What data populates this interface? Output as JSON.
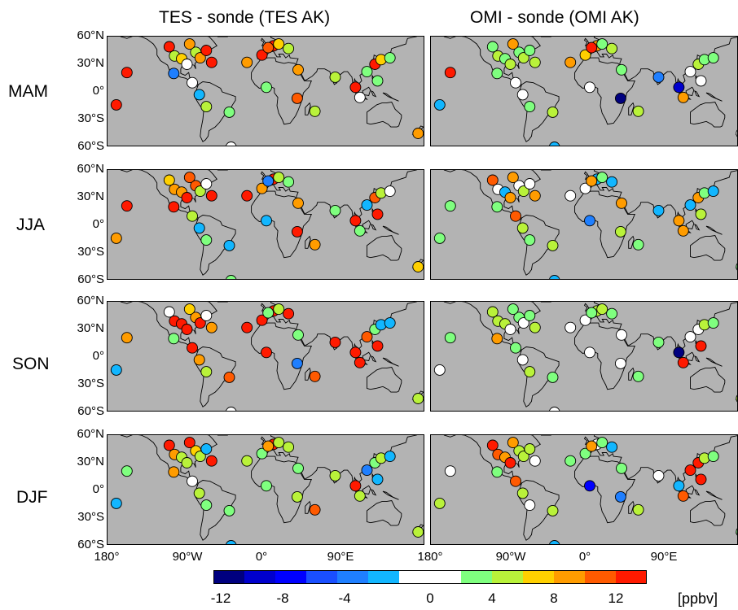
{
  "columns": [
    "TES - sonde (TES AK)",
    "OMI - sonde (OMI AK)"
  ],
  "seasons": [
    "MAM",
    "JJA",
    "SON",
    "DJF"
  ],
  "lat_labels": [
    "60°N",
    "30°N",
    "0°",
    "30°S",
    "60°S"
  ],
  "lon_labels": [
    "180°",
    "90°W",
    "0°",
    "90°E"
  ],
  "colorbar": {
    "colors": [
      "#00007f",
      "#0000cd",
      "#0000ff",
      "#1a4fff",
      "#1f7fff",
      "#12b6ff",
      "#ffffff",
      "#ffffff",
      "#7fff7f",
      "#b9f23a",
      "#ffd000",
      "#ff9c00",
      "#ff5a00",
      "#ff1a00"
    ],
    "tick_labels": [
      "-12",
      "-8",
      "-4",
      "0",
      "4",
      "8",
      "12"
    ],
    "unit": "[ppbv]"
  },
  "land_color": "#b3b3b3",
  "stations": [
    {
      "lon": -158,
      "lat": 21
    },
    {
      "lon": -110,
      "lat": 49
    },
    {
      "lon": -104,
      "lat": 39
    },
    {
      "lon": -96,
      "lat": 36
    },
    {
      "lon": -90,
      "lat": 30
    },
    {
      "lon": -80,
      "lat": 43
    },
    {
      "lon": -75,
      "lat": 37
    },
    {
      "lon": -62,
      "lat": 32
    },
    {
      "lon": -87,
      "lat": 52
    },
    {
      "lon": -68,
      "lat": 45
    },
    {
      "lon": -105,
      "lat": 20
    },
    {
      "lon": -84,
      "lat": 10
    },
    {
      "lon": -76,
      "lat": -3
    },
    {
      "lon": -68,
      "lat": -16
    },
    {
      "lon": -42,
      "lat": -22
    },
    {
      "lon": -22,
      "lat": 32
    },
    {
      "lon": -5,
      "lat": 40
    },
    {
      "lon": 8,
      "lat": 50
    },
    {
      "lon": 14,
      "lat": 52
    },
    {
      "lon": 25,
      "lat": 47
    },
    {
      "lon": 2,
      "lat": 48
    },
    {
      "lon": 0,
      "lat": 5
    },
    {
      "lon": 35,
      "lat": -7
    },
    {
      "lon": 55,
      "lat": -21
    },
    {
      "lon": 36,
      "lat": 24
    },
    {
      "lon": 78,
      "lat": 16
    },
    {
      "lon": 101,
      "lat": 5
    },
    {
      "lon": 114,
      "lat": 22
    },
    {
      "lon": 123,
      "lat": 30
    },
    {
      "lon": 130,
      "lat": 35
    },
    {
      "lon": 140,
      "lat": 37
    },
    {
      "lon": 126,
      "lat": 12
    },
    {
      "lon": 106,
      "lat": -6
    },
    {
      "lon": 172,
      "lat": -45
    },
    {
      "lon": -170,
      "lat": -14
    },
    {
      "lon": -25,
      "lat": 68
    },
    {
      "lon": -50,
      "lat": 70
    },
    {
      "lon": 18,
      "lat": 68
    },
    {
      "lon": -40,
      "lat": -60
    },
    {
      "lon": 150,
      "lat": -80
    }
  ],
  "panel_values": [
    [
      15,
      12,
      4,
      6,
      -1,
      4,
      8,
      12,
      9,
      13,
      -6,
      -1,
      -3,
      4,
      3,
      8,
      13,
      12,
      7,
      4,
      10,
      3,
      10,
      4,
      8,
      4,
      13,
      3,
      13,
      6,
      3,
      3,
      -1,
      8,
      14,
      12,
      12,
      -3,
      -1,
      -6
    ],
    [
      12,
      3,
      4,
      3,
      4,
      3,
      4,
      4,
      9,
      3,
      3,
      -2,
      0,
      3,
      4,
      9,
      7,
      8,
      3,
      4,
      12,
      0,
      -13,
      4,
      3,
      -6,
      -12,
      0,
      4,
      3,
      3,
      0,
      9,
      0,
      -3,
      12,
      4,
      13,
      -3,
      0
    ],
    [
      14,
      7,
      9,
      8,
      13,
      11,
      5,
      12,
      11,
      -2,
      14,
      5,
      -3,
      3,
      -3,
      13,
      9,
      12,
      5,
      3,
      -6,
      -4,
      12,
      8,
      8,
      3,
      13,
      -3,
      11,
      5,
      -2,
      14,
      3,
      6,
      9,
      12,
      9,
      12,
      2,
      -3
    ],
    [
      3,
      10,
      0,
      -3,
      9,
      0,
      4,
      8,
      8,
      -1,
      3,
      11,
      4,
      3,
      4,
      0,
      0,
      -4,
      3,
      -4,
      9,
      -5,
      4,
      3,
      9,
      -3,
      9,
      -4,
      9,
      3,
      -3,
      4,
      9,
      3,
      3,
      12,
      3,
      4,
      -3,
      0
    ],
    [
      9,
      -1,
      13,
      12,
      14,
      8,
      12,
      9,
      7,
      -2,
      3,
      12,
      8,
      4,
      10,
      13,
      12,
      14,
      4,
      14,
      3,
      12,
      -6,
      10,
      3,
      14,
      14,
      10,
      3,
      -3,
      -3,
      14,
      12,
      4,
      -3,
      12,
      9,
      13,
      0,
      -3
    ],
    [
      3,
      4,
      5,
      4,
      -1,
      3,
      0,
      4,
      3,
      3,
      9,
      3,
      0,
      4,
      3,
      0,
      0,
      4,
      5,
      3,
      3,
      0,
      0,
      3,
      -2,
      3,
      -13,
      0,
      -2,
      4,
      3,
      14,
      12,
      4,
      0,
      12,
      9,
      4,
      0,
      0
    ],
    [
      3,
      12,
      9,
      5,
      4,
      7,
      4,
      13,
      12,
      -4,
      9,
      -1,
      4,
      3,
      3,
      4,
      3,
      13,
      4,
      4,
      9,
      3,
      4,
      10,
      3,
      4,
      13,
      -5,
      3,
      4,
      -4,
      -4,
      4,
      4,
      -3,
      12,
      5,
      3,
      -3,
      0
    ],
    [
      0,
      12,
      11,
      8,
      13,
      4,
      5,
      0,
      9,
      4,
      3,
      10,
      4,
      0,
      4,
      3,
      3,
      0,
      2,
      -4,
      9,
      -9,
      -5,
      4,
      3,
      0,
      -4,
      14,
      13,
      4,
      3,
      12,
      10,
      3,
      4,
      13,
      11,
      4,
      -3,
      0
    ]
  ],
  "land_polygons": [
    [
      [
        -165,
        68
      ],
      [
        -160,
        72
      ],
      [
        -140,
        70
      ],
      [
        -125,
        70
      ],
      [
        -110,
        68
      ],
      [
        -95,
        68
      ],
      [
        -80,
        65
      ],
      [
        -75,
        62
      ],
      [
        -65,
        60
      ],
      [
        -60,
        55
      ],
      [
        -56,
        50
      ],
      [
        -65,
        45
      ],
      [
        -70,
        42
      ],
      [
        -75,
        38
      ],
      [
        -77,
        34
      ],
      [
        -81,
        31
      ],
      [
        -80,
        25
      ],
      [
        -82,
        29
      ],
      [
        -88,
        30
      ],
      [
        -95,
        29
      ],
      [
        -97,
        25
      ],
      [
        -97,
        20
      ],
      [
        -92,
        18
      ],
      [
        -88,
        21
      ],
      [
        -87,
        16
      ],
      [
        -83,
        12
      ],
      [
        -80,
        8
      ],
      [
        -77,
        8
      ],
      [
        -78,
        6
      ],
      [
        -82,
        8
      ],
      [
        -85,
        11
      ],
      [
        -88,
        13
      ],
      [
        -92,
        15
      ],
      [
        -97,
        16
      ],
      [
        -105,
        20
      ],
      [
        -110,
        24
      ],
      [
        -112,
        29
      ],
      [
        -115,
        31
      ],
      [
        -117,
        32
      ],
      [
        -120,
        34
      ],
      [
        -124,
        40
      ],
      [
        -124,
        46
      ],
      [
        -128,
        52
      ],
      [
        -135,
        57
      ],
      [
        -142,
        60
      ],
      [
        -150,
        61
      ],
      [
        -158,
        58
      ],
      [
        -165,
        60
      ],
      [
        -165,
        68
      ]
    ],
    [
      [
        -77,
        8
      ],
      [
        -72,
        11
      ],
      [
        -64,
        10
      ],
      [
        -60,
        8
      ],
      [
        -52,
        4
      ],
      [
        -50,
        0
      ],
      [
        -44,
        -2
      ],
      [
        -35,
        -5
      ],
      [
        -35,
        -9
      ],
      [
        -39,
        -15
      ],
      [
        -41,
        -22
      ],
      [
        -48,
        -26
      ],
      [
        -53,
        -33
      ],
      [
        -58,
        -38
      ],
      [
        -65,
        -42
      ],
      [
        -66,
        -48
      ],
      [
        -69,
        -52
      ],
      [
        -72,
        -54
      ],
      [
        -75,
        -48
      ],
      [
        -74,
        -40
      ],
      [
        -72,
        -30
      ],
      [
        -71,
        -20
      ],
      [
        -76,
        -14
      ],
      [
        -81,
        -6
      ],
      [
        -80,
        -1
      ],
      [
        -79,
        3
      ],
      [
        -77,
        8
      ]
    ],
    [
      [
        -17,
        14
      ],
      [
        -17,
        21
      ],
      [
        -13,
        27
      ],
      [
        -9,
        32
      ],
      [
        -6,
        36
      ],
      [
        2,
        37
      ],
      [
        10,
        37
      ],
      [
        11,
        33
      ],
      [
        20,
        31
      ],
      [
        25,
        32
      ],
      [
        32,
        31
      ],
      [
        35,
        28
      ],
      [
        38,
        20
      ],
      [
        43,
        12
      ],
      [
        51,
        12
      ],
      [
        48,
        5
      ],
      [
        42,
        -1
      ],
      [
        40,
        -10
      ],
      [
        36,
        -20
      ],
      [
        33,
        -26
      ],
      [
        27,
        -34
      ],
      [
        20,
        -35
      ],
      [
        18,
        -30
      ],
      [
        14,
        -23
      ],
      [
        12,
        -15
      ],
      [
        13,
        -6
      ],
      [
        9,
        -1
      ],
      [
        9,
        4
      ],
      [
        4,
        6
      ],
      [
        -2,
        5
      ],
      [
        -8,
        4
      ],
      [
        -13,
        8
      ],
      [
        -17,
        14
      ]
    ],
    [
      [
        -10,
        36
      ],
      [
        -9,
        43
      ],
      [
        -2,
        44
      ],
      [
        -4,
        48
      ],
      [
        3,
        51
      ],
      [
        8,
        54
      ],
      [
        10,
        57
      ],
      [
        5,
        59
      ],
      [
        6,
        62
      ],
      [
        12,
        65
      ],
      [
        18,
        69
      ],
      [
        25,
        71
      ],
      [
        32,
        70
      ],
      [
        45,
        68
      ],
      [
        60,
        70
      ],
      [
        75,
        72
      ],
      [
        90,
        75
      ],
      [
        110,
        77
      ],
      [
        130,
        72
      ],
      [
        150,
        70
      ],
      [
        170,
        70
      ],
      [
        180,
        68
      ],
      [
        180,
        64
      ],
      [
        170,
        60
      ],
      [
        160,
        58
      ],
      [
        158,
        52
      ],
      [
        142,
        47
      ],
      [
        140,
        40
      ],
      [
        135,
        35
      ],
      [
        130,
        33
      ],
      [
        126,
        38
      ],
      [
        122,
        40
      ],
      [
        121,
        31
      ],
      [
        118,
        25
      ],
      [
        110,
        21
      ],
      [
        106,
        18
      ],
      [
        108,
        12
      ],
      [
        105,
        9
      ],
      [
        101,
        12
      ],
      [
        100,
        14
      ],
      [
        99,
        8
      ],
      [
        103,
        2
      ],
      [
        98,
        8
      ],
      [
        97,
        16
      ],
      [
        92,
        22
      ],
      [
        88,
        22
      ],
      [
        80,
        16
      ],
      [
        80,
        10
      ],
      [
        77,
        8
      ],
      [
        73,
        17
      ],
      [
        72,
        22
      ],
      [
        66,
        25
      ],
      [
        58,
        25
      ],
      [
        57,
        22
      ],
      [
        52,
        17
      ],
      [
        45,
        13
      ],
      [
        43,
        13
      ],
      [
        39,
        21
      ],
      [
        35,
        28
      ],
      [
        34,
        31
      ],
      [
        36,
        36
      ],
      [
        27,
        37
      ],
      [
        26,
        40
      ],
      [
        22,
        37
      ],
      [
        19,
        41
      ],
      [
        14,
        41
      ],
      [
        16,
        38
      ],
      [
        12,
        38
      ],
      [
        8,
        44
      ],
      [
        3,
        43
      ],
      [
        -1,
        38
      ],
      [
        -5,
        36
      ],
      [
        -10,
        36
      ]
    ],
    [
      [
        44,
        -25
      ],
      [
        47,
        -25
      ],
      [
        50,
        -15
      ],
      [
        49,
        -12
      ],
      [
        44,
        -17
      ],
      [
        44,
        -25
      ]
    ],
    [
      [
        114,
        -22
      ],
      [
        114,
        -34
      ],
      [
        118,
        -35
      ],
      [
        124,
        -34
      ],
      [
        132,
        -32
      ],
      [
        138,
        -35
      ],
      [
        141,
        -38
      ],
      [
        148,
        -38
      ],
      [
        150,
        -37
      ],
      [
        153,
        -28
      ],
      [
        153,
        -25
      ],
      [
        146,
        -19
      ],
      [
        142,
        -11
      ],
      [
        136,
        -12
      ],
      [
        131,
        -12
      ],
      [
        125,
        -14
      ],
      [
        114,
        -22
      ]
    ],
    [
      [
        -5,
        50
      ],
      [
        1,
        51
      ],
      [
        -1,
        53
      ],
      [
        -3,
        56
      ],
      [
        -5,
        58
      ],
      [
        -6,
        56
      ],
      [
        -3,
        54
      ],
      [
        -5,
        50
      ]
    ],
    [
      [
        130,
        31
      ],
      [
        131,
        34
      ],
      [
        136,
        34
      ],
      [
        141,
        38
      ],
      [
        142,
        41
      ],
      [
        140,
        40
      ],
      [
        137,
        37
      ],
      [
        133,
        34
      ],
      [
        130,
        31
      ]
    ],
    [
      [
        95,
        5
      ],
      [
        100,
        0
      ],
      [
        105,
        -5
      ],
      [
        104,
        -4
      ],
      [
        98,
        2
      ],
      [
        95,
        5
      ]
    ],
    [
      [
        109,
        -7
      ],
      [
        114,
        -8
      ],
      [
        113,
        -7
      ],
      [
        109,
        -7
      ]
    ],
    [
      [
        109,
        1
      ],
      [
        110,
        -3
      ],
      [
        116,
        -4
      ],
      [
        118,
        2
      ],
      [
        116,
        5
      ],
      [
        109,
        1
      ]
    ],
    [
      [
        119,
        1
      ],
      [
        121,
        -4
      ],
      [
        124,
        -5
      ],
      [
        121,
        0
      ],
      [
        119,
        1
      ]
    ],
    [
      [
        132,
        -1
      ],
      [
        138,
        -5
      ],
      [
        145,
        -8
      ],
      [
        150,
        -10
      ],
      [
        143,
        -7
      ],
      [
        136,
        -2
      ],
      [
        132,
        -1
      ]
    ],
    [
      [
        -55,
        60
      ],
      [
        -44,
        60
      ],
      [
        -30,
        70
      ],
      [
        -20,
        76
      ],
      [
        -30,
        80
      ],
      [
        -60,
        80
      ],
      [
        -70,
        76
      ],
      [
        -55,
        72
      ],
      [
        -55,
        60
      ]
    ],
    [
      [
        166,
        -46
      ],
      [
        172,
        -41
      ],
      [
        175,
        -37
      ],
      [
        178,
        -38
      ],
      [
        174,
        -42
      ],
      [
        170,
        -46
      ],
      [
        166,
        -46
      ]
    ],
    [
      [
        120,
        18
      ],
      [
        122,
        14
      ],
      [
        124,
        12
      ],
      [
        126,
        8
      ],
      [
        122,
        10
      ],
      [
        120,
        15
      ],
      [
        120,
        18
      ]
    ]
  ]
}
